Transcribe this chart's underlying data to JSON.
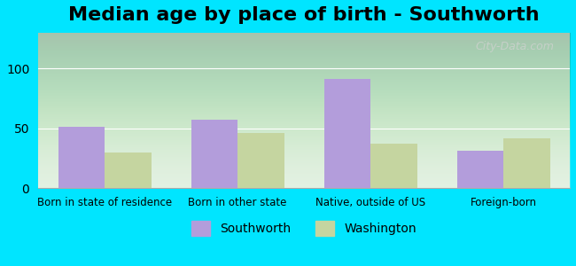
{
  "title": "Median age by place of birth - Southworth",
  "categories": [
    "Born in state of residence",
    "Born in other state",
    "Native, outside of US",
    "Foreign-born"
  ],
  "southworth_values": [
    51,
    57,
    91,
    31
  ],
  "washington_values": [
    30,
    46,
    37,
    42
  ],
  "southworth_color": "#b39ddb",
  "washington_color": "#c5d5a0",
  "ylim": [
    0,
    130
  ],
  "yticks": [
    0,
    50,
    100
  ],
  "background_color": "#00e5ff",
  "plot_bg_top": "#e8f5e9",
  "plot_bg_bottom": "#f0f8e8",
  "title_fontsize": 16,
  "legend_labels": [
    "Southworth",
    "Washington"
  ],
  "bar_width": 0.35,
  "watermark": "City-Data.com"
}
